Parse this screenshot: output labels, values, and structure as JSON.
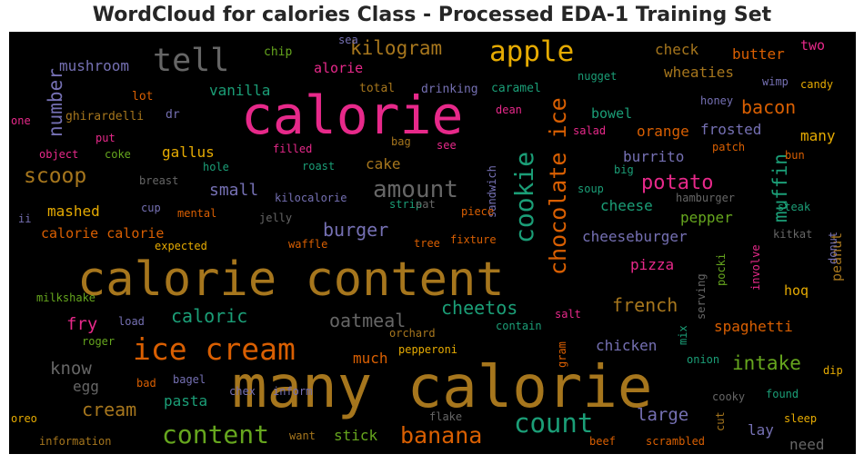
{
  "chart_title": "WordCloud for calories Class - Processed EDA-1 Training Set",
  "chart_data": {
    "type": "wordcloud",
    "title": "WordCloud for calories Class - Processed EDA-1 Training Set",
    "background": "#000000",
    "palette": [
      "#e7298a",
      "#a6761d",
      "#1b9e77",
      "#d95f02",
      "#7570b3",
      "#66a61e",
      "#e6ab02",
      "#666666"
    ],
    "words": [
      {
        "text": "calorie",
        "weight": 58,
        "color": "#e7298a"
      },
      {
        "text": "calorie content",
        "weight": 52,
        "color": "#a6761d"
      },
      {
        "text": "many calorie",
        "weight": 64,
        "color": "#a6761d"
      },
      {
        "text": "apple",
        "weight": 31,
        "color": "#e6ab02"
      },
      {
        "text": "tell",
        "weight": 35,
        "color": "#666666"
      },
      {
        "text": "ice cream",
        "weight": 33,
        "color": "#d95f02"
      },
      {
        "text": "chocolate ice",
        "weight": 25,
        "color": "#d95f02"
      },
      {
        "text": "cookie",
        "weight": 28,
        "color": "#1b9e77"
      },
      {
        "text": "amount",
        "weight": 26,
        "color": "#666666"
      },
      {
        "text": "count",
        "weight": 29,
        "color": "#1b9e77"
      },
      {
        "text": "banana",
        "weight": 25,
        "color": "#d95f02"
      },
      {
        "text": "content",
        "weight": 28,
        "color": "#66a61e"
      },
      {
        "text": "kilogram",
        "weight": 21,
        "color": "#a6761d"
      },
      {
        "text": "number",
        "weight": 21,
        "color": "#7570b3"
      },
      {
        "text": "scoop",
        "weight": 23,
        "color": "#a6761d"
      },
      {
        "text": "potato",
        "weight": 22,
        "color": "#e7298a"
      },
      {
        "text": "muffin",
        "weight": 21,
        "color": "#1b9e77"
      },
      {
        "text": "bacon",
        "weight": 20,
        "color": "#d95f02"
      },
      {
        "text": "burger",
        "weight": 20,
        "color": "#7570b3"
      },
      {
        "text": "cheetos",
        "weight": 20,
        "color": "#1b9e77"
      },
      {
        "text": "oatmeal",
        "weight": 20,
        "color": "#666666"
      },
      {
        "text": "caloric",
        "weight": 20,
        "color": "#1b9e77"
      },
      {
        "text": "intake",
        "weight": 21,
        "color": "#66a61e"
      },
      {
        "text": "french",
        "weight": 20,
        "color": "#a6761d"
      },
      {
        "text": "large",
        "weight": 19,
        "color": "#7570b3"
      },
      {
        "text": "know",
        "weight": 19,
        "color": "#666666"
      },
      {
        "text": "cream",
        "weight": 20,
        "color": "#a6761d"
      },
      {
        "text": "fry",
        "weight": 19,
        "color": "#e7298a"
      },
      {
        "text": "small",
        "weight": 18,
        "color": "#7570b3"
      },
      {
        "text": "mushroom",
        "weight": 16,
        "color": "#7570b3"
      },
      {
        "text": "check",
        "weight": 16,
        "color": "#a6761d"
      },
      {
        "text": "butter",
        "weight": 16,
        "color": "#d95f02"
      },
      {
        "text": "two",
        "weight": 15,
        "color": "#e7298a"
      },
      {
        "text": "wheaties",
        "weight": 16,
        "color": "#a6761d"
      },
      {
        "text": "vanilla",
        "weight": 16,
        "color": "#1b9e77"
      },
      {
        "text": "alorie",
        "weight": 15,
        "color": "#e7298a"
      },
      {
        "text": "bowel",
        "weight": 15,
        "color": "#1b9e77"
      },
      {
        "text": "orange",
        "weight": 16,
        "color": "#d95f02"
      },
      {
        "text": "frosted",
        "weight": 16,
        "color": "#7570b3"
      },
      {
        "text": "many",
        "weight": 16,
        "color": "#e6ab02"
      },
      {
        "text": "gallus",
        "weight": 16,
        "color": "#e6ab02"
      },
      {
        "text": "burrito",
        "weight": 16,
        "color": "#7570b3"
      },
      {
        "text": "cake",
        "weight": 16,
        "color": "#a6761d"
      },
      {
        "text": "mashed",
        "weight": 16,
        "color": "#e6ab02"
      },
      {
        "text": "calorie calorie",
        "weight": 15,
        "color": "#d95f02"
      },
      {
        "text": "cheese",
        "weight": 16,
        "color": "#1b9e77"
      },
      {
        "text": "pepper",
        "weight": 16,
        "color": "#66a61e"
      },
      {
        "text": "cheeseburger",
        "weight": 16,
        "color": "#7570b3"
      },
      {
        "text": "pizza",
        "weight": 16,
        "color": "#e7298a"
      },
      {
        "text": "spaghetti",
        "weight": 16,
        "color": "#d95f02"
      },
      {
        "text": "chicken",
        "weight": 16,
        "color": "#7570b3"
      },
      {
        "text": "much",
        "weight": 16,
        "color": "#d95f02"
      },
      {
        "text": "egg",
        "weight": 16,
        "color": "#666666"
      },
      {
        "text": "pasta",
        "weight": 16,
        "color": "#1b9e77"
      },
      {
        "text": "stick",
        "weight": 16,
        "color": "#66a61e"
      },
      {
        "text": "lay",
        "weight": 16,
        "color": "#7570b3"
      },
      {
        "text": "need",
        "weight": 16,
        "color": "#666666"
      },
      {
        "text": "hoq",
        "weight": 15,
        "color": "#e6ab02"
      },
      {
        "text": "peanut",
        "weight": 15,
        "color": "#a6761d"
      },
      {
        "text": "chip",
        "weight": 13,
        "color": "#66a61e"
      },
      {
        "text": "sea",
        "weight": 12,
        "color": "#7570b3"
      },
      {
        "text": "nugget",
        "weight": 12,
        "color": "#1b9e77"
      },
      {
        "text": "candy",
        "weight": 12,
        "color": "#e6ab02"
      },
      {
        "text": "wimp",
        "weight": 12,
        "color": "#7570b3"
      },
      {
        "text": "lot",
        "weight": 13,
        "color": "#d95f02"
      },
      {
        "text": "total",
        "weight": 13,
        "color": "#a6761d"
      },
      {
        "text": "drinking",
        "weight": 13,
        "color": "#7570b3"
      },
      {
        "text": "caramel",
        "weight": 13,
        "color": "#1b9e77"
      },
      {
        "text": "honey",
        "weight": 12,
        "color": "#7570b3"
      },
      {
        "text": "one",
        "weight": 12,
        "color": "#e7298a"
      },
      {
        "text": "ghirardelli",
        "weight": 13,
        "color": "#a6761d"
      },
      {
        "text": "dr",
        "weight": 13,
        "color": "#7570b3"
      },
      {
        "text": "dean",
        "weight": 12,
        "color": "#e7298a"
      },
      {
        "text": "put",
        "weight": 12,
        "color": "#e7298a"
      },
      {
        "text": "bag",
        "weight": 12,
        "color": "#a6761d"
      },
      {
        "text": "see",
        "weight": 12,
        "color": "#e7298a"
      },
      {
        "text": "sandwich",
        "weight": 12,
        "color": "#7570b3"
      },
      {
        "text": "salad",
        "weight": 12,
        "color": "#e7298a"
      },
      {
        "text": "patch",
        "weight": 12,
        "color": "#d95f02"
      },
      {
        "text": "object",
        "weight": 12,
        "color": "#e7298a"
      },
      {
        "text": "coke",
        "weight": 12,
        "color": "#66a61e"
      },
      {
        "text": "filled",
        "weight": 12,
        "color": "#e7298a"
      },
      {
        "text": "roast",
        "weight": 12,
        "color": "#1b9e77"
      },
      {
        "text": "hole",
        "weight": 12,
        "color": "#1b9e77"
      },
      {
        "text": "big",
        "weight": 12,
        "color": "#1b9e77"
      },
      {
        "text": "bun",
        "weight": 12,
        "color": "#d95f02"
      },
      {
        "text": "breast",
        "weight": 12,
        "color": "#666666"
      },
      {
        "text": "soup",
        "weight": 12,
        "color": "#1b9e77"
      },
      {
        "text": "hamburger",
        "weight": 12,
        "color": "#666666"
      },
      {
        "text": "steak",
        "weight": 12,
        "color": "#1b9e77"
      },
      {
        "text": "kilocalorie",
        "weight": 12,
        "color": "#7570b3"
      },
      {
        "text": "strip",
        "weight": 12,
        "color": "#1b9e77"
      },
      {
        "text": "eat",
        "weight": 12,
        "color": "#666666"
      },
      {
        "text": "cup",
        "weight": 12,
        "color": "#7570b3"
      },
      {
        "text": "mental",
        "weight": 12,
        "color": "#d95f02"
      },
      {
        "text": "jelly",
        "weight": 12,
        "color": "#666666"
      },
      {
        "text": "piece",
        "weight": 12,
        "color": "#d95f02"
      },
      {
        "text": "ii",
        "weight": 12,
        "color": "#7570b3"
      },
      {
        "text": "expected",
        "weight": 12,
        "color": "#e6ab02"
      },
      {
        "text": "waffle",
        "weight": 12,
        "color": "#d95f02"
      },
      {
        "text": "tree",
        "weight": 12,
        "color": "#d95f02"
      },
      {
        "text": "fixture",
        "weight": 12,
        "color": "#d95f02"
      },
      {
        "text": "kitkat",
        "weight": 12,
        "color": "#666666"
      },
      {
        "text": "pocki",
        "weight": 12,
        "color": "#66a61e"
      },
      {
        "text": "involve",
        "weight": 12,
        "color": "#e7298a"
      },
      {
        "text": "donut",
        "weight": 12,
        "color": "#7570b3"
      },
      {
        "text": "serving",
        "weight": 12,
        "color": "#666666"
      },
      {
        "text": "milkshake",
        "weight": 12,
        "color": "#66a61e"
      },
      {
        "text": "load",
        "weight": 12,
        "color": "#7570b3"
      },
      {
        "text": "orchard",
        "weight": 12,
        "color": "#a6761d"
      },
      {
        "text": "contain",
        "weight": 12,
        "color": "#1b9e77"
      },
      {
        "text": "salt",
        "weight": 12,
        "color": "#e7298a"
      },
      {
        "text": "roger",
        "weight": 12,
        "color": "#66a61e"
      },
      {
        "text": "pepperoni",
        "weight": 12,
        "color": "#e6ab02"
      },
      {
        "text": "mix",
        "weight": 12,
        "color": "#1b9e77"
      },
      {
        "text": "gram",
        "weight": 12,
        "color": "#d95f02"
      },
      {
        "text": "onion",
        "weight": 12,
        "color": "#1b9e77"
      },
      {
        "text": "bad",
        "weight": 12,
        "color": "#d95f02"
      },
      {
        "text": "bagel",
        "weight": 12,
        "color": "#7570b3"
      },
      {
        "text": "dip",
        "weight": 12,
        "color": "#e6ab02"
      },
      {
        "text": "chex",
        "weight": 12,
        "color": "#7570b3"
      },
      {
        "text": "inform",
        "weight": 12,
        "color": "#7570b3"
      },
      {
        "text": "flake",
        "weight": 12,
        "color": "#666666"
      },
      {
        "text": "cooky",
        "weight": 12,
        "color": "#666666"
      },
      {
        "text": "found",
        "weight": 12,
        "color": "#1b9e77"
      },
      {
        "text": "cut",
        "weight": 12,
        "color": "#a6761d"
      },
      {
        "text": "oreo",
        "weight": 12,
        "color": "#e6ab02"
      },
      {
        "text": "want",
        "weight": 12,
        "color": "#a6761d"
      },
      {
        "text": "sleep",
        "weight": 12,
        "color": "#e6ab02"
      },
      {
        "text": "information",
        "weight": 12,
        "color": "#a6761d"
      },
      {
        "text": "beef",
        "weight": 12,
        "color": "#d95f02"
      },
      {
        "text": "scrambled",
        "weight": 12,
        "color": "#d95f02"
      }
    ]
  }
}
